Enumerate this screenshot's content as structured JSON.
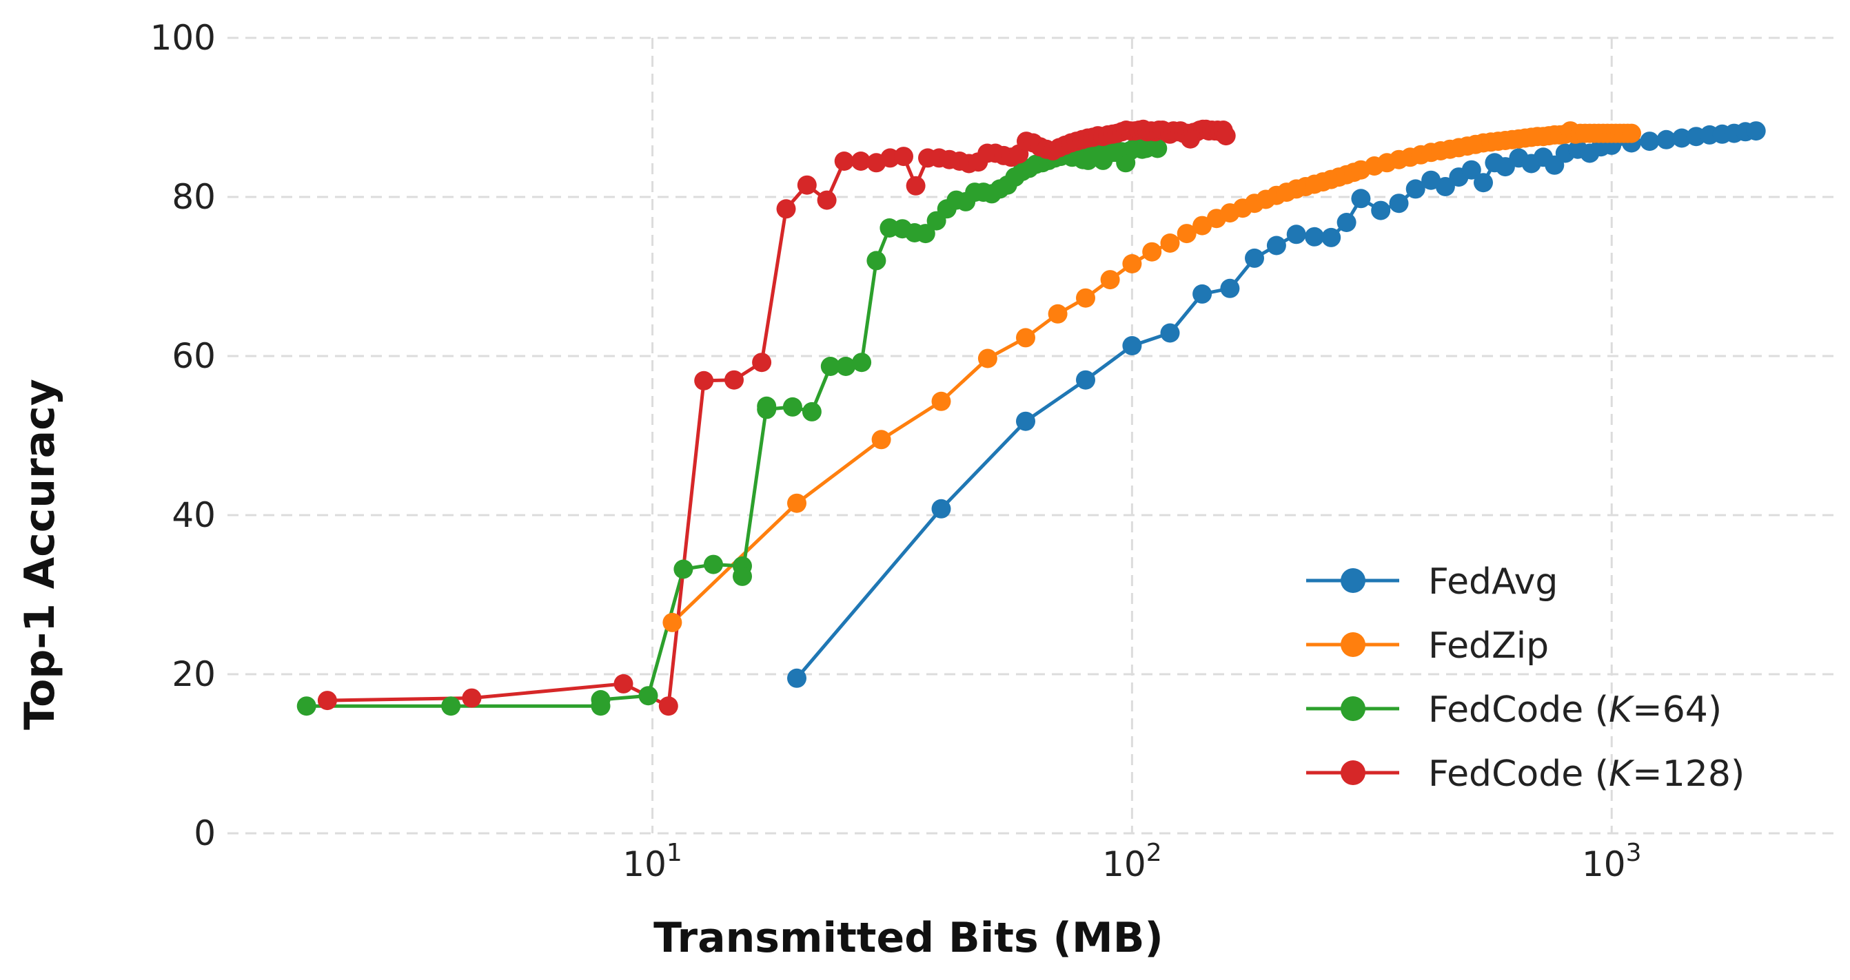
{
  "chart_data": {
    "type": "line",
    "xlabel": "Transmitted Bits (MB)",
    "ylabel": "Top-1 Accuracy",
    "x_scale": "log",
    "xlim": [
      1.3,
      2900
    ],
    "ylim": [
      0,
      100
    ],
    "x_ticks": [
      {
        "value": 10,
        "base": "10",
        "exp": "1"
      },
      {
        "value": 100,
        "base": "10",
        "exp": "2"
      },
      {
        "value": 1000,
        "base": "10",
        "exp": "3"
      }
    ],
    "y_ticks": [
      0,
      20,
      40,
      60,
      80,
      100
    ],
    "grid": true,
    "legend_position": "lower-right",
    "series": [
      {
        "name": "FedAvg",
        "color": "#1f77b4",
        "x": [
          20,
          40,
          60,
          80,
          100,
          120,
          140,
          160,
          180,
          200,
          220,
          240,
          260,
          280,
          300,
          330,
          360,
          390,
          420,
          450,
          480,
          510,
          540,
          570,
          600,
          640,
          680,
          720,
          760,
          800,
          850,
          900,
          950,
          1000,
          1100,
          1200,
          1300,
          1400,
          1500,
          1600,
          1700,
          1800,
          1900,
          2000
        ],
        "y": [
          19.5,
          40.8,
          51.8,
          57.0,
          61.3,
          62.9,
          67.8,
          68.5,
          72.3,
          73.9,
          75.3,
          75.0,
          74.9,
          76.8,
          79.8,
          78.3,
          79.2,
          81.0,
          82.1,
          81.3,
          82.5,
          83.4,
          81.8,
          84.3,
          83.8,
          84.9,
          84.2,
          85.0,
          84.0,
          85.5,
          86.0,
          85.5,
          86.3,
          86.5,
          86.8,
          87.0,
          87.2,
          87.4,
          87.6,
          87.8,
          87.9,
          88.0,
          88.2,
          88.3
        ]
      },
      {
        "name": "FedZip",
        "color": "#ff7f0e",
        "x": [
          11,
          20,
          30,
          40,
          50,
          60,
          70,
          80,
          90,
          100,
          110,
          120,
          130,
          140,
          150,
          160,
          170,
          180,
          190,
          200,
          210,
          220,
          230,
          240,
          250,
          260,
          270,
          280,
          290,
          300,
          320,
          340,
          360,
          380,
          400,
          420,
          440,
          460,
          480,
          500,
          520,
          540,
          560,
          580,
          600,
          620,
          640,
          660,
          680,
          700,
          720,
          740,
          760,
          780,
          800,
          820,
          840,
          860,
          880,
          900,
          920,
          940,
          960,
          980,
          1000,
          1020,
          1040,
          1060,
          1080,
          1100
        ],
        "y": [
          26.5,
          41.5,
          49.5,
          54.3,
          59.7,
          62.3,
          65.3,
          67.3,
          69.6,
          71.6,
          73.1,
          74.2,
          75.4,
          76.4,
          77.3,
          78.0,
          78.6,
          79.2,
          79.7,
          80.2,
          80.6,
          81.0,
          81.3,
          81.6,
          81.9,
          82.2,
          82.5,
          82.8,
          83.1,
          83.4,
          83.9,
          84.3,
          84.7,
          85.0,
          85.3,
          85.6,
          85.8,
          86.0,
          86.2,
          86.4,
          86.6,
          86.8,
          86.9,
          87.0,
          87.1,
          87.2,
          87.3,
          87.4,
          87.5,
          87.6,
          87.6,
          87.7,
          87.8,
          87.8,
          87.9,
          88.3,
          87.9,
          88.0,
          88.0,
          88.0,
          88.0,
          88.0,
          88.0,
          88.0,
          88.0,
          88.0,
          88.0,
          88.0,
          88.0,
          88.0
        ]
      },
      {
        "name": "FedCode (K=64)",
        "color": "#2ca02c",
        "x": [
          1.9,
          3.8,
          7.8,
          7.8,
          9.8,
          11.6,
          13.4,
          15.4,
          15.4,
          17.3,
          17.3,
          19.6,
          21.5,
          23.5,
          25.3,
          27.3,
          29.3,
          31.2,
          33.2,
          35.2,
          37.1,
          39.1,
          41.1,
          43.0,
          45.0,
          47.0,
          49.0,
          51.0,
          53.0,
          55.0,
          57.0,
          59.0,
          61.0,
          63.0,
          65.0,
          67.0,
          69.0,
          71.0,
          73.0,
          75.0,
          77.0,
          79.0,
          81.0,
          83.0,
          85.0,
          87.0,
          89.0,
          91.0,
          93.0,
          95.0,
          97.0,
          99.0,
          101.0,
          103.0,
          105.0,
          107.0,
          109.0,
          111.0,
          113.0
        ],
        "y": [
          16.0,
          16.0,
          16.0,
          16.8,
          17.3,
          33.2,
          33.8,
          33.6,
          32.3,
          53.7,
          53.3,
          53.6,
          53.0,
          58.7,
          58.7,
          59.2,
          72.0,
          76.1,
          76.0,
          75.5,
          75.4,
          77.0,
          78.5,
          79.6,
          79.4,
          80.6,
          80.6,
          80.4,
          81.0,
          81.5,
          82.5,
          83.2,
          83.6,
          84.1,
          84.3,
          84.6,
          84.9,
          85.1,
          85.3,
          85.0,
          85.5,
          84.7,
          84.6,
          85.3,
          85.5,
          84.6,
          85.5,
          85.6,
          85.6,
          85.7,
          84.3,
          85.8,
          86.1,
          86.2,
          86.0,
          86.1,
          86.3,
          86.3,
          86.1
        ]
      },
      {
        "name": "FedCode (K=128)",
        "color": "#d62728",
        "x": [
          2.1,
          4.2,
          8.7,
          10.8,
          12.8,
          14.8,
          16.9,
          19.0,
          21.0,
          23.1,
          25.1,
          27.2,
          29.3,
          31.3,
          33.4,
          35.4,
          37.5,
          39.6,
          41.6,
          43.7,
          45.7,
          47.8,
          49.9,
          51.9,
          54.0,
          56.0,
          58.1,
          60.2,
          62.2,
          64.3,
          66.3,
          68.4,
          70.5,
          72.5,
          74.6,
          76.6,
          78.7,
          80.8,
          82.8,
          84.9,
          86.9,
          89.0,
          91.1,
          93.1,
          95.2,
          97.2,
          99.3,
          101.4,
          103.4,
          105.5,
          107.5,
          109.6,
          111.7,
          113.7,
          115.8,
          117.8,
          119.9,
          122.0,
          124.0,
          126.1,
          128.1,
          130.2,
          132.3,
          134.3,
          136.4,
          138.4,
          140.5,
          142.6,
          144.6,
          146.7,
          148.7,
          150.8,
          152.9,
          154.9,
          157.0
        ],
        "y": [
          16.7,
          17.0,
          18.8,
          16.0,
          56.9,
          57.0,
          59.2,
          78.5,
          81.5,
          79.6,
          84.5,
          84.5,
          84.3,
          84.9,
          85.1,
          81.4,
          84.9,
          84.9,
          84.7,
          84.5,
          84.2,
          84.4,
          85.5,
          85.5,
          85.2,
          85.0,
          85.4,
          87.0,
          86.8,
          86.3,
          86.0,
          85.8,
          86.2,
          86.5,
          86.8,
          87.0,
          87.2,
          87.4,
          87.5,
          87.7,
          87.6,
          87.8,
          87.9,
          88.0,
          88.2,
          88.4,
          88.3,
          88.3,
          88.4,
          88.5,
          88.2,
          88.3,
          88.2,
          88.4,
          88.4,
          88.2,
          87.9,
          88.3,
          88.2,
          88.3,
          88.0,
          88.0,
          87.3,
          88.1,
          88.2,
          88.4,
          88.5,
          88.5,
          88.3,
          88.4,
          88.3,
          88.4,
          88.2,
          88.4,
          87.7
        ]
      }
    ]
  },
  "legend": {
    "items": [
      {
        "label": "FedAvg",
        "color": "#1f77b4"
      },
      {
        "label": "FedZip",
        "color": "#ff7f0e"
      },
      {
        "label_prefix": "FedCode (",
        "label_k": "K",
        "label_suffix": "=64)",
        "color": "#2ca02c"
      },
      {
        "label_prefix": "FedCode (",
        "label_k": "K",
        "label_suffix": "=128)",
        "color": "#d62728"
      }
    ]
  }
}
